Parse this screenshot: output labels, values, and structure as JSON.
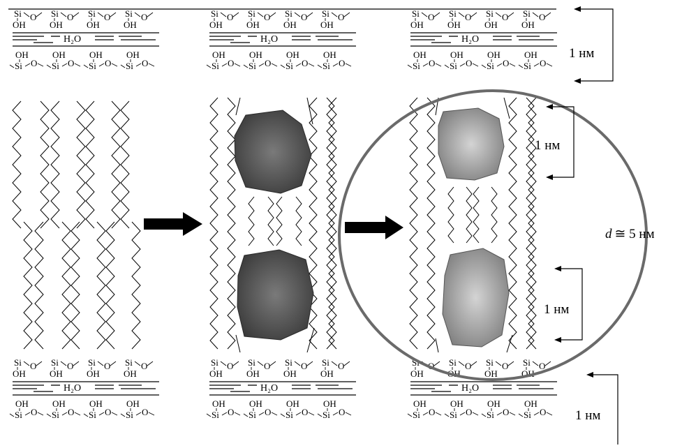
{
  "labels": {
    "si": "Si",
    "o": "O",
    "oh": "OH",
    "h2o": "H₂O",
    "nm_top": "1 нм",
    "nm_particle_top": "1 нм",
    "nm_particle_bottom": "1 нм",
    "nm_bottom": "1 нм",
    "diameter_var": "d",
    "diameter_val": "≅ 5 нм"
  },
  "colors": {
    "line": "#000000",
    "circle": "#6a6a6a",
    "particle_dark": "#454545",
    "particle_light": "#9a9a9a",
    "arrow": "#000000"
  }
}
